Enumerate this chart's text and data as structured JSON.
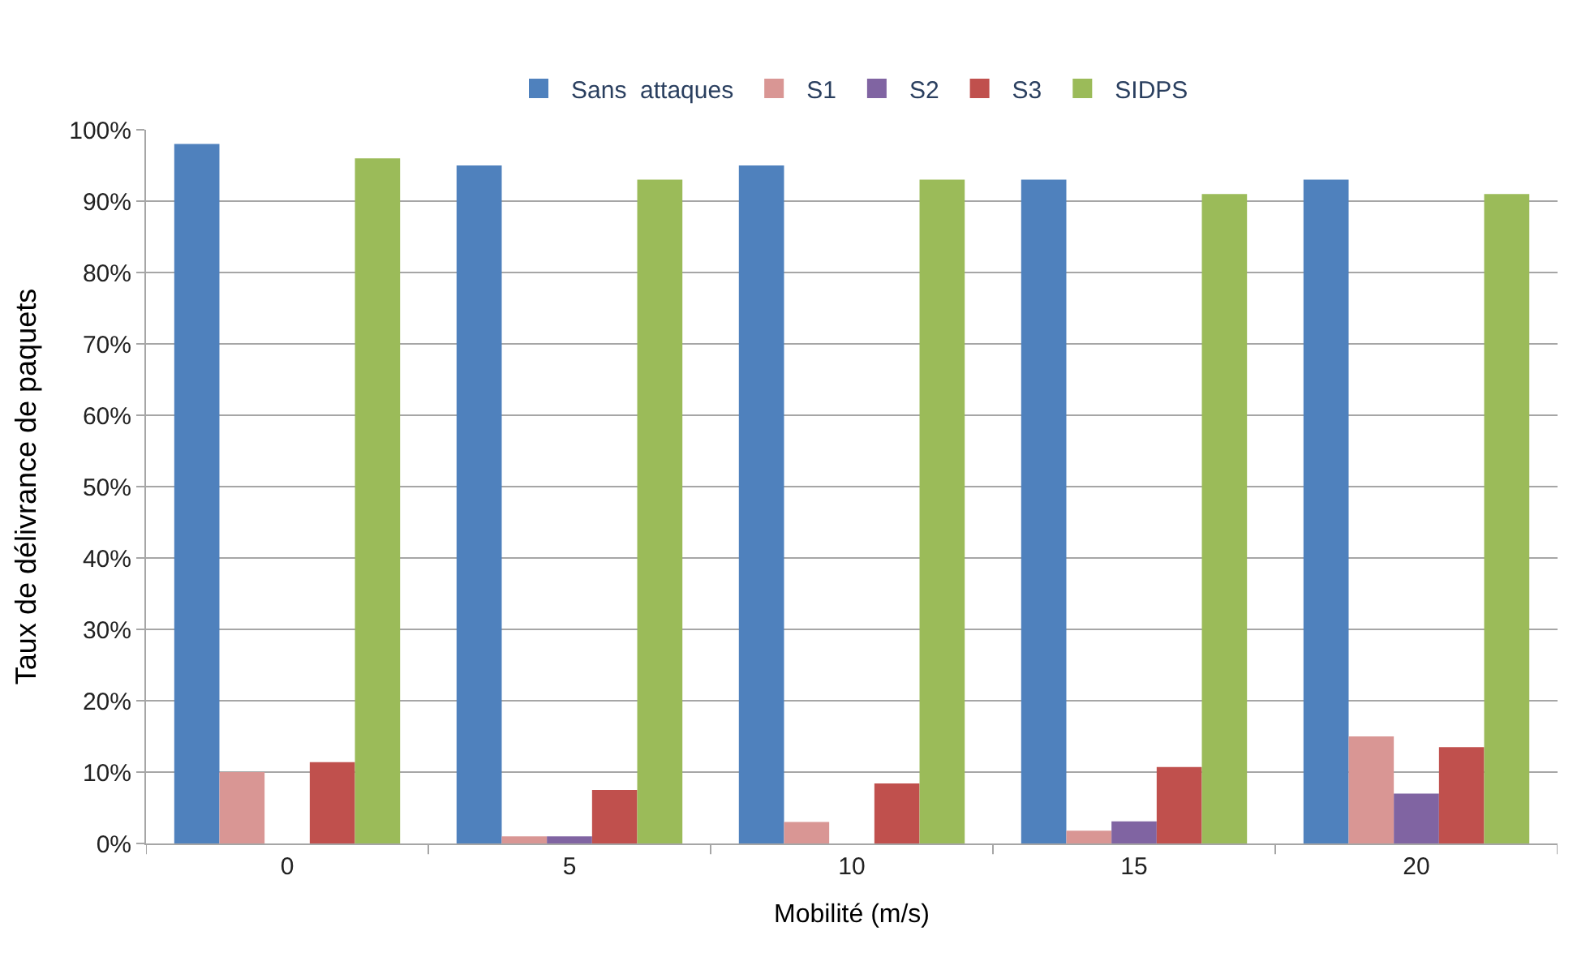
{
  "chart_data": {
    "type": "bar",
    "xlabel": "Mobilité (m/s)",
    "ylabel": "Taux de délivrance de paquets",
    "categories": [
      "0",
      "5",
      "10",
      "15",
      "20"
    ],
    "series": [
      {
        "name": "Sans  attaques",
        "color": "#4f81bd",
        "values": [
          98,
          95,
          95,
          93,
          93
        ]
      },
      {
        "name": "S1",
        "color": "#d99694",
        "values": [
          10,
          1,
          3,
          1.8,
          15
        ]
      },
      {
        "name": "S2",
        "color": "#8064a2",
        "values": [
          0,
          1,
          0,
          3.1,
          7
        ]
      },
      {
        "name": "S3",
        "color": "#c0504d",
        "values": [
          11.4,
          7.5,
          8.4,
          10.7,
          13.5
        ]
      },
      {
        "name": "SIDPS",
        "color": "#9bbb59",
        "values": [
          96,
          93,
          93,
          91,
          91
        ]
      }
    ],
    "ylim": [
      0,
      100
    ],
    "yticks": [
      {
        "value": 0,
        "label": "0%"
      },
      {
        "value": 10,
        "label": "10%"
      },
      {
        "value": 20,
        "label": "20%"
      },
      {
        "value": 30,
        "label": "30%"
      },
      {
        "value": 40,
        "label": "40%"
      },
      {
        "value": 50,
        "label": "50%"
      },
      {
        "value": 60,
        "label": "60%"
      },
      {
        "value": 70,
        "label": "70%"
      },
      {
        "value": 80,
        "label": "80%"
      },
      {
        "value": 90,
        "label": "90%"
      },
      {
        "value": 100,
        "label": "100%"
      }
    ],
    "grid": "y",
    "legend": "top"
  }
}
